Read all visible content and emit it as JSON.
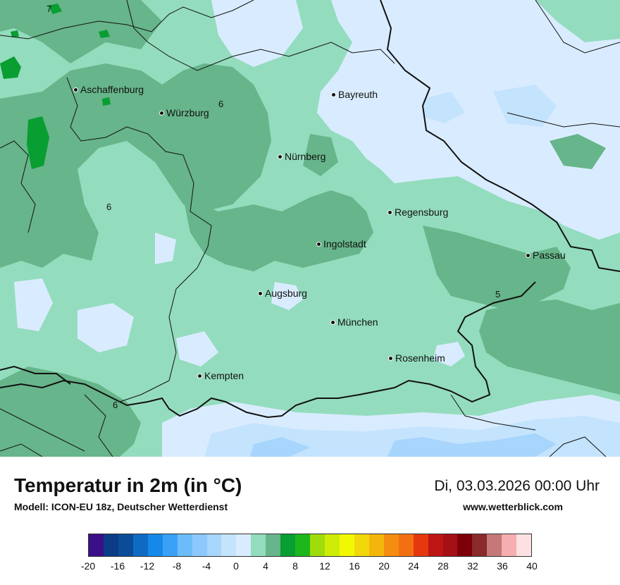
{
  "map": {
    "cities": [
      {
        "name": "Aschaffenburg"
      },
      {
        "name": "Würzburg"
      },
      {
        "name": "Bayreuth"
      },
      {
        "name": "Nürnberg"
      },
      {
        "name": "Regensburg"
      },
      {
        "name": "Ingolstadt"
      },
      {
        "name": "Passau"
      },
      {
        "name": "Augsburg"
      },
      {
        "name": "München"
      },
      {
        "name": "Rosenheim"
      },
      {
        "name": "Kempten"
      }
    ],
    "isolines": [
      "7",
      "6",
      "6",
      "5",
      "6"
    ]
  },
  "footer": {
    "title": "Temperatur in 2m (in °C)",
    "subtitle": "Modell: ICON-EU 18z, Deutscher Wetterdienst",
    "datetime": "Di, 03.03.2026 00:00 Uhr",
    "website": "www.wetterblick.com"
  },
  "legend": {
    "colors": [
      "#3a0f87",
      "#0c3c86",
      "#0a4c98",
      "#0f6ac4",
      "#1589ea",
      "#3aa1f7",
      "#6dbcfa",
      "#8cc8fb",
      "#a7d5fc",
      "#c4e3fd",
      "#d9ecff",
      "#94dcbe",
      "#67b58a",
      "#089e31",
      "#1db71c",
      "#9fdc09",
      "#cdec06",
      "#f2f804",
      "#f2d70b",
      "#f3b60c",
      "#f48d10",
      "#f37012",
      "#e5380f",
      "#be1614",
      "#a50f16",
      "#7d0008",
      "#8a2a2a",
      "#c57878",
      "#f6aeb0",
      "#fde0e1"
    ],
    "ticks": [
      "-20",
      "-16",
      "-12",
      "-8",
      "-4",
      "0",
      "4",
      "8",
      "12",
      "16",
      "20",
      "24",
      "28",
      "32",
      "36",
      "40"
    ]
  }
}
